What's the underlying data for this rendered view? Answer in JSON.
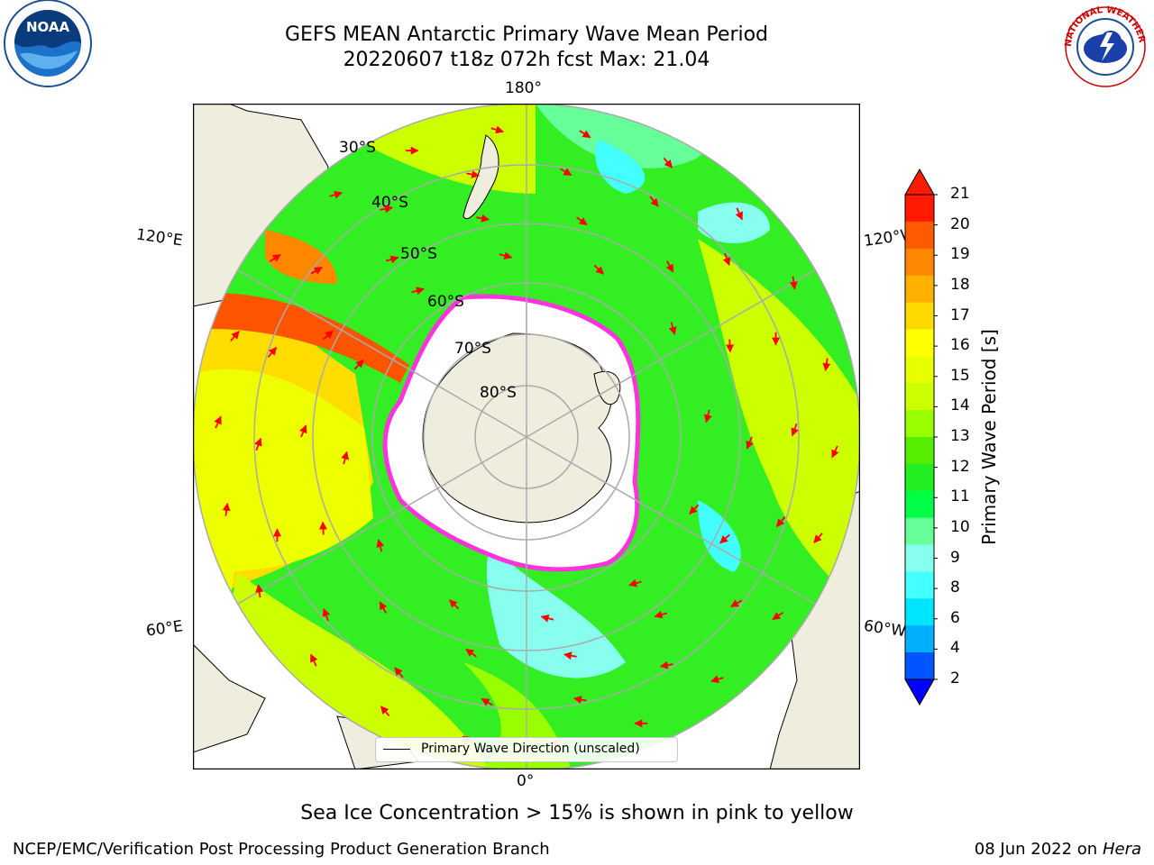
{
  "title": {
    "line1": "GEFS MEAN Antarctic Primary Wave Mean Period",
    "line2": "20220607 t18z 072h fcst   Max: 21.04"
  },
  "map": {
    "projection": "South polar stereographic",
    "longitude_labels": [
      "180°",
      "120°E",
      "60°E",
      "0°",
      "60°W",
      "120°W"
    ],
    "latitude_labels": [
      "30°S",
      "40°S",
      "50°S",
      "60°S",
      "70°S",
      "80°S"
    ],
    "colors": {
      "land": "#efedde",
      "sea_ice": "#ffffff",
      "ice_edge": "#ff33dd",
      "arrow": "#ff0000",
      "grid": "#aaaaaa"
    }
  },
  "legend": {
    "label": "Primary Wave Direction (unscaled)"
  },
  "colorbar": {
    "label": "Primary Wave Period [s]",
    "ticks": [
      "21",
      "20",
      "19",
      "18",
      "17",
      "16",
      "15",
      "14",
      "13",
      "12",
      "11",
      "10",
      "9",
      "8",
      "6",
      "4",
      "2"
    ],
    "colors": [
      "#ff1a00",
      "#ff5a00",
      "#ff8800",
      "#ffb000",
      "#ffd800",
      "#ffff00",
      "#e8ff00",
      "#ccff00",
      "#99ff00",
      "#55ee00",
      "#22ee22",
      "#00ff44",
      "#66ff99",
      "#88ffee",
      "#44ffff",
      "#00e5ff",
      "#00b0ff",
      "#0055ff"
    ]
  },
  "caption": "Sea Ice Concentration > 15% is shown in pink to yellow",
  "footer": {
    "org": "NCEP/EMC/Verification Post Processing Product Generation Branch",
    "date": "08 Jun 2022 on",
    "host": "Hera"
  },
  "logos": {
    "left": "NOAA",
    "right": "NATIONAL WEATHER SERVICE"
  }
}
